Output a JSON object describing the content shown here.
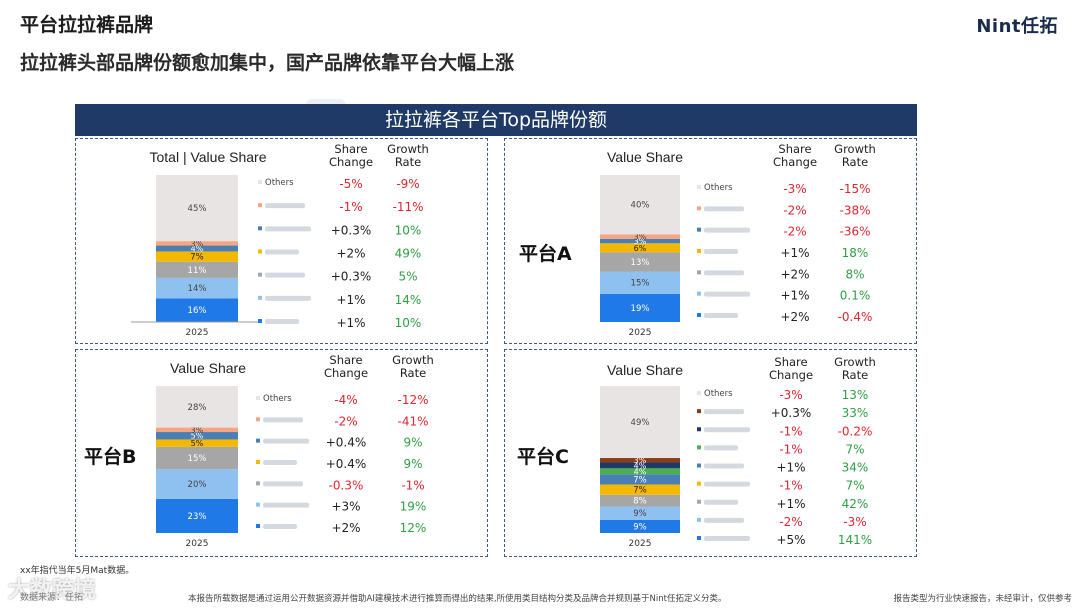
{
  "header": {
    "title": "平台拉拉裤品牌",
    "logo": "Nint任拓",
    "subtitle": "拉拉裤头部品牌份额愈加集中，国产品牌依靠平台大幅上涨",
    "banner": "拉拉裤各平台Top品牌份额"
  },
  "colors": {
    "banner": "#1f3a66",
    "positive": "#2ea043",
    "negative": "#e0262f",
    "neutral": "#222222"
  },
  "table_headers": {
    "share_change": [
      "Share",
      "Change"
    ],
    "growth_rate": [
      "Growth",
      "Rate"
    ]
  },
  "chart_data": [
    {
      "type": "bar",
      "stacked": true,
      "title": "Total | Value Share",
      "platform_label": "",
      "categories": [
        "2025"
      ],
      "series": [
        {
          "name": "Others",
          "value": 45,
          "label": "45%",
          "color": "#e8e4e4",
          "share_change": "-5%",
          "growth_rate": "-9%"
        },
        {
          "name": "",
          "value": 3,
          "label": "3%",
          "color": "#f4a582",
          "share_change": "-1%",
          "growth_rate": "-11%"
        },
        {
          "name": "",
          "value": 4,
          "label": "4%",
          "color": "#4a7fb5",
          "share_change": "+0.3%",
          "growth_rate": "10%"
        },
        {
          "name": "",
          "value": 7,
          "label": "7%",
          "color": "#f5b800",
          "share_change": "+2%",
          "growth_rate": "49%"
        },
        {
          "name": "",
          "value": 11,
          "label": "11%",
          "color": "#a6a6a6",
          "share_change": "+0.3%",
          "growth_rate": "5%"
        },
        {
          "name": "",
          "value": 14,
          "label": "14%",
          "color": "#8ec1f0",
          "share_change": "+1%",
          "growth_rate": "14%"
        },
        {
          "name": "",
          "value": 16,
          "label": "16%",
          "color": "#1f7ae8",
          "share_change": "+1%",
          "growth_rate": "10%"
        }
      ]
    },
    {
      "type": "bar",
      "stacked": true,
      "title": "Value Share",
      "platform_label": "平台A",
      "categories": [
        "2025"
      ],
      "series": [
        {
          "name": "Others",
          "value": 40,
          "label": "40%",
          "color": "#e8e4e4",
          "share_change": "-3%",
          "growth_rate": "-15%"
        },
        {
          "name": "",
          "value": 3,
          "label": "3%",
          "color": "#f4a582",
          "share_change": "-2%",
          "growth_rate": "-38%"
        },
        {
          "name": "",
          "value": 3,
          "label": "3%",
          "color": "#4a7fb5",
          "share_change": "-2%",
          "growth_rate": "-36%"
        },
        {
          "name": "",
          "value": 6,
          "label": "6%",
          "color": "#f5b800",
          "share_change": "+1%",
          "growth_rate": "18%"
        },
        {
          "name": "",
          "value": 13,
          "label": "13%",
          "color": "#a6a6a6",
          "share_change": "+2%",
          "growth_rate": "8%"
        },
        {
          "name": "",
          "value": 15,
          "label": "15%",
          "color": "#8ec1f0",
          "share_change": "+1%",
          "growth_rate": "0.1%"
        },
        {
          "name": "",
          "value": 19,
          "label": "19%",
          "color": "#1f7ae8",
          "share_change": "+2%",
          "growth_rate": "-0.4%"
        }
      ]
    },
    {
      "type": "bar",
      "stacked": true,
      "title": "Value Share",
      "platform_label": "平台B",
      "categories": [
        "2025"
      ],
      "series": [
        {
          "name": "Others",
          "value": 28,
          "label": "28%",
          "color": "#e8e4e4",
          "share_change": "-4%",
          "growth_rate": "-12%"
        },
        {
          "name": "",
          "value": 3,
          "label": "3%",
          "color": "#f4a582",
          "share_change": "-2%",
          "growth_rate": "-41%"
        },
        {
          "name": "",
          "value": 5,
          "label": "5%",
          "color": "#4a7fb5",
          "share_change": "+0.4%",
          "growth_rate": "9%"
        },
        {
          "name": "",
          "value": 5,
          "label": "5%",
          "color": "#f5b800",
          "share_change": "+0.4%",
          "growth_rate": "9%"
        },
        {
          "name": "",
          "value": 15,
          "label": "15%",
          "color": "#a6a6a6",
          "share_change": "-0.3%",
          "growth_rate": "-1%"
        },
        {
          "name": "",
          "value": 20,
          "label": "20%",
          "color": "#8ec1f0",
          "share_change": "+3%",
          "growth_rate": "19%"
        },
        {
          "name": "",
          "value": 23,
          "label": "23%",
          "color": "#1f7ae8",
          "share_change": "+2%",
          "growth_rate": "12%"
        }
      ]
    },
    {
      "type": "bar",
      "stacked": true,
      "title": "Value Share",
      "platform_label": "平台C",
      "categories": [
        "2025"
      ],
      "series": [
        {
          "name": "Others",
          "value": 49,
          "label": "49%",
          "color": "#e8e4e4",
          "share_change": "-3%",
          "growth_rate": "13%"
        },
        {
          "name": "",
          "value": 3,
          "label": "3%",
          "color": "#8b3a1a",
          "share_change": "+0.3%",
          "growth_rate": "33%"
        },
        {
          "name": "",
          "value": 4,
          "label": "4%",
          "color": "#1f3a66",
          "share_change": "-1%",
          "growth_rate": "-0.2%"
        },
        {
          "name": "",
          "value": 4,
          "label": "4%",
          "color": "#4caf50",
          "share_change": "-1%",
          "growth_rate": "7%"
        },
        {
          "name": "",
          "value": 7,
          "label": "7%",
          "color": "#4a7fb5",
          "share_change": "+1%",
          "growth_rate": "34%"
        },
        {
          "name": "",
          "value": 7,
          "label": "7%",
          "color": "#f5b800",
          "share_change": "-1%",
          "growth_rate": "7%"
        },
        {
          "name": "",
          "value": 8,
          "label": "8%",
          "color": "#a6a6a6",
          "share_change": "+1%",
          "growth_rate": "42%"
        },
        {
          "name": "",
          "value": 9,
          "label": "9%",
          "color": "#8ec1f0",
          "share_change": "-2%",
          "growth_rate": "-3%"
        },
        {
          "name": "",
          "value": 9,
          "label": "9%",
          "color": "#1f7ae8",
          "share_change": "+5%",
          "growth_rate": "141%"
        }
      ]
    }
  ],
  "footer": {
    "note": "xx年指代当年5月Mat数据。",
    "source": "数据来源：任拓",
    "disclaimer": "本报告所载数据是通过运用公开数据资源并借助AI建模技术进行推算而得出的结果,所使用类目结构分类及品牌合并规则基于Nint任拓定义分类。",
    "report_type": "报告类型为行业快速报告，未经审计，仅供参考",
    "watermark": "大数跨境"
  }
}
